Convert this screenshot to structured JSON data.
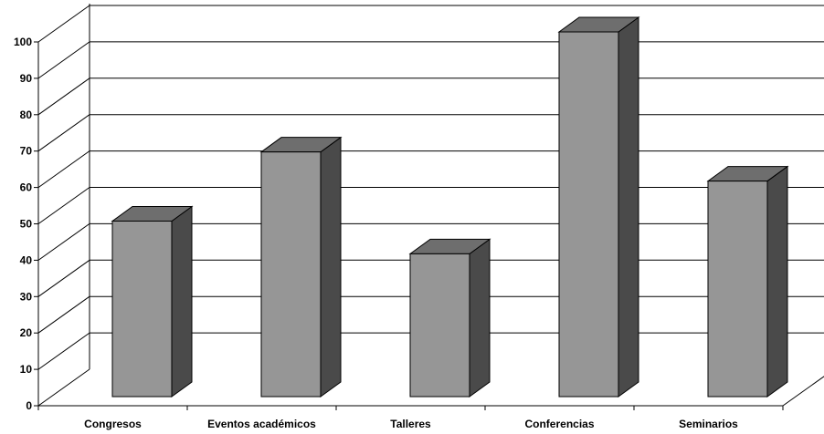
{
  "chart_data": {
    "type": "bar",
    "style": "3d-column",
    "title": "",
    "xlabel": "",
    "ylabel": "",
    "categories": [
      "Congresos",
      "Eventos académicos",
      "Talleres",
      "Conferencias",
      "Seminarios"
    ],
    "values": [
      48,
      67,
      39,
      100,
      59
    ],
    "ylim": [
      0,
      100
    ],
    "yticks": [
      0,
      10,
      20,
      30,
      40,
      50,
      60,
      70,
      80,
      90,
      100
    ],
    "ytick_labels": [
      "0",
      "10",
      "20",
      "30",
      "40",
      "50",
      "60",
      "70",
      "80",
      "90",
      "100"
    ],
    "grid": true,
    "legend": "none",
    "colors": {
      "bar_front": "#969696",
      "bar_top": "#6e6e6e",
      "bar_side": "#4a4a4a",
      "grid": "#000000",
      "axis": "#000000"
    }
  }
}
